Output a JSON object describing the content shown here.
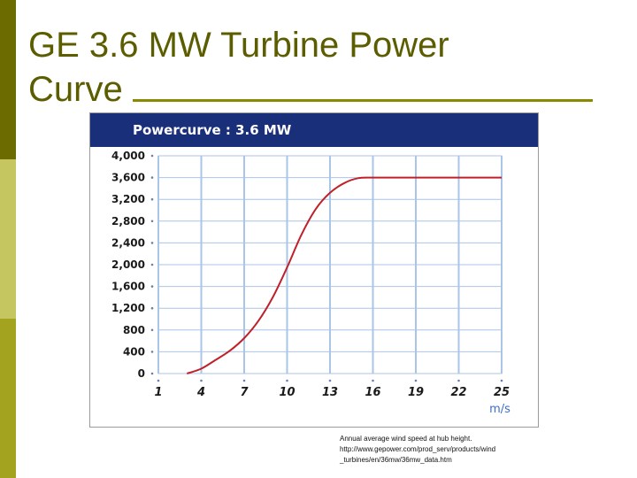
{
  "slide": {
    "title_line1": "GE 3.6 MW Turbine Power",
    "title_line2": "Curve",
    "source_line1": "Annual average wind speed at hub height.",
    "source_line2": "http://www.gepower.com/prod_serv/products/wind",
    "source_line3": "_turbines/en/36mw/36mw_data.htm"
  },
  "colors": {
    "accent_dark": "#6b6b00",
    "accent_light": "#c6c660",
    "header_navy": "#1a2f7a",
    "curve_red": "#c0202a",
    "grid_blue": "#a9c6e8",
    "axis_unit_blue": "#3b6fc9"
  },
  "chart_data": {
    "type": "line",
    "title": "Powercurve : 3.6 MW",
    "xlabel": "m/s",
    "ylabel": "",
    "xlim": [
      1,
      25
    ],
    "ylim": [
      0,
      4000
    ],
    "x_ticks": [
      1,
      4,
      7,
      10,
      13,
      16,
      19,
      22,
      25
    ],
    "y_ticks": [
      0,
      400,
      800,
      1200,
      1600,
      2000,
      2400,
      2800,
      3200,
      3600,
      4000
    ],
    "x_tick_labels": [
      "1",
      "4",
      "7",
      "10",
      "13",
      "16",
      "19",
      "22",
      "25"
    ],
    "y_tick_labels": [
      "0",
      "400",
      "800",
      "1,200",
      "1,600",
      "2,000",
      "2,400",
      "2,800",
      "3,200",
      "3,600",
      "4,000"
    ],
    "grid": true,
    "series": [
      {
        "x": [
          3,
          4,
          5,
          6,
          7,
          8,
          9,
          10,
          11,
          12,
          13,
          14,
          15,
          16,
          18,
          20,
          22,
          25
        ],
        "y": [
          0,
          90,
          250,
          420,
          650,
          970,
          1400,
          1950,
          2550,
          3020,
          3320,
          3500,
          3590,
          3600,
          3600,
          3600,
          3600,
          3600
        ]
      }
    ]
  }
}
